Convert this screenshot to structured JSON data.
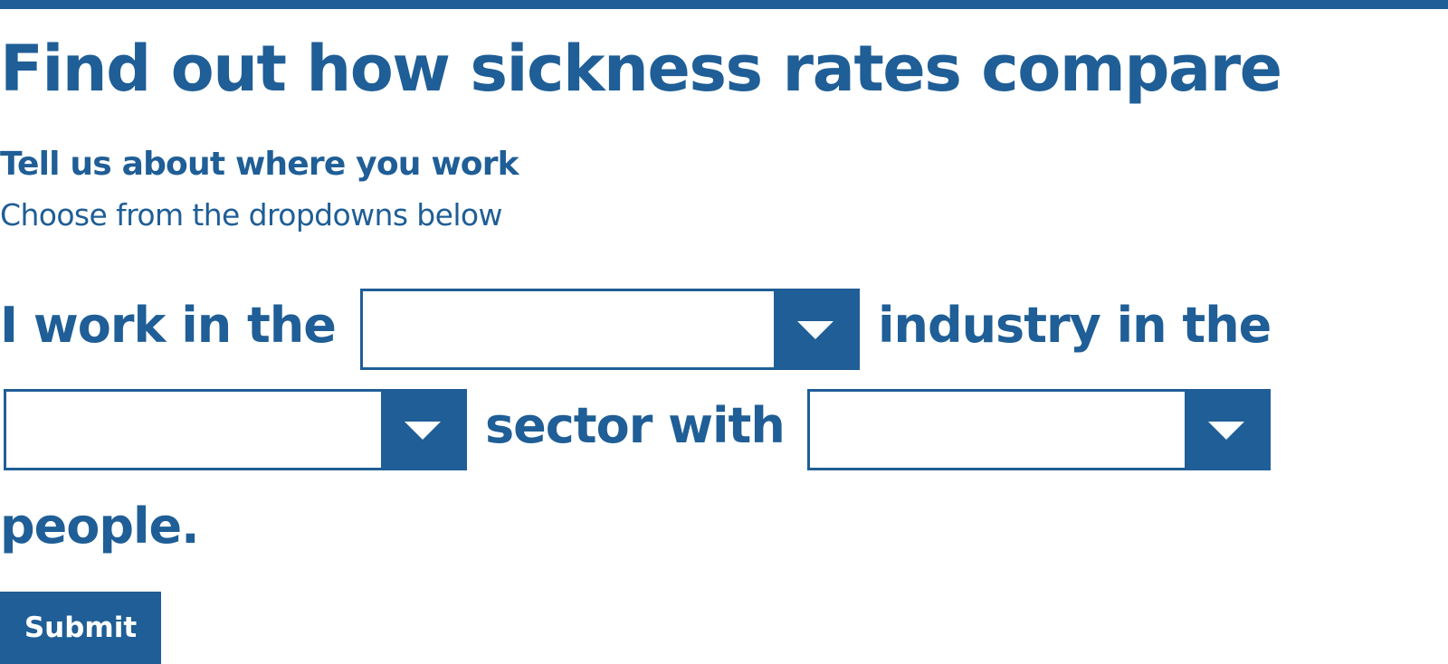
{
  "header": {
    "title": "Find out how sickness rates compare"
  },
  "intro": {
    "subheading": "Tell us about where you work",
    "instructions": "Choose from the dropdowns below"
  },
  "sentence": {
    "part1": "I work in the",
    "part2": "industry in the",
    "part3": "sector with",
    "part4": "people."
  },
  "dropdowns": {
    "industry": {
      "value": "",
      "icon": "chevron-down-icon"
    },
    "sector": {
      "value": "",
      "icon": "chevron-down-icon"
    },
    "company_size": {
      "value": "",
      "icon": "chevron-down-icon"
    }
  },
  "actions": {
    "submit_label": "Submit"
  },
  "colors": {
    "primary": "#1f5e96",
    "background": "#ffffff",
    "button_text": "#ffffff"
  }
}
